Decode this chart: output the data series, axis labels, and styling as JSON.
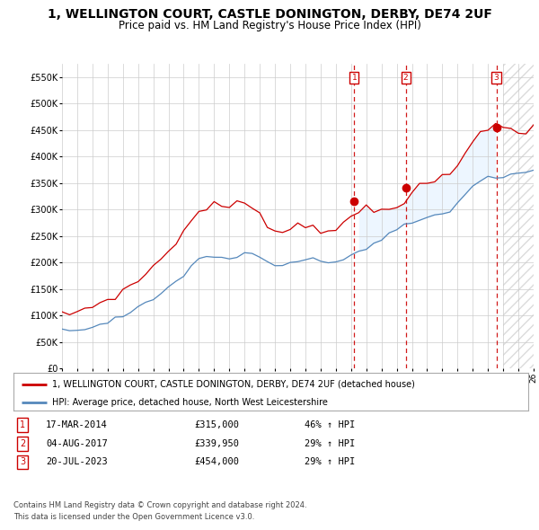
{
  "title": "1, WELLINGTON COURT, CASTLE DONINGTON, DERBY, DE74 2UF",
  "subtitle": "Price paid vs. HM Land Registry's House Price Index (HPI)",
  "title_fontsize": 10,
  "subtitle_fontsize": 8.5,
  "ylim": [
    0,
    575000
  ],
  "yticks": [
    0,
    50000,
    100000,
    150000,
    200000,
    250000,
    300000,
    350000,
    400000,
    450000,
    500000,
    550000
  ],
  "ytick_labels": [
    "£0",
    "£50K",
    "£100K",
    "£150K",
    "£200K",
    "£250K",
    "£300K",
    "£350K",
    "£400K",
    "£450K",
    "£500K",
    "£550K"
  ],
  "x_start_year": 1995,
  "x_end_year": 2026,
  "sale_dates_decimal": [
    2014.21,
    2017.59,
    2023.55
  ],
  "sale_prices": [
    315000,
    339950,
    454000
  ],
  "sale_labels": [
    "1",
    "2",
    "3"
  ],
  "sale_hpi_pct": [
    "46% ↑ HPI",
    "29% ↑ HPI",
    "29% ↑ HPI"
  ],
  "sale_date_labels": [
    "17-MAR-2014",
    "04-AUG-2017",
    "20-JUL-2023"
  ],
  "property_line_color": "#cc0000",
  "hpi_line_color": "#5588bb",
  "hpi_fill_color": "#ddeeff",
  "grid_color": "#cccccc",
  "background_color": "#ffffff",
  "legend_property_label": "1, WELLINGTON COURT, CASTLE DONINGTON, DERBY, DE74 2UF (detached house)",
  "legend_hpi_label": "HPI: Average price, detached house, North West Leicestershire",
  "footer_line1": "Contains HM Land Registry data © Crown copyright and database right 2024.",
  "footer_line2": "This data is licensed under the Open Government Licence v3.0.",
  "hpi_data": {
    "years": [
      1995.0,
      1995.5,
      1996.0,
      1996.5,
      1997.0,
      1997.5,
      1998.0,
      1998.5,
      1999.0,
      1999.5,
      2000.0,
      2000.5,
      2001.0,
      2001.5,
      2002.0,
      2002.5,
      2003.0,
      2003.5,
      2004.0,
      2004.5,
      2005.0,
      2005.5,
      2006.0,
      2006.5,
      2007.0,
      2007.5,
      2008.0,
      2008.5,
      2009.0,
      2009.5,
      2010.0,
      2010.5,
      2011.0,
      2011.5,
      2012.0,
      2012.5,
      2013.0,
      2013.5,
      2014.0,
      2014.5,
      2015.0,
      2015.5,
      2016.0,
      2016.5,
      2017.0,
      2017.5,
      2018.0,
      2018.5,
      2019.0,
      2019.5,
      2020.0,
      2020.5,
      2021.0,
      2021.5,
      2022.0,
      2022.5,
      2023.0,
      2023.5,
      2024.0,
      2024.5,
      2025.0,
      2025.5,
      2026.0
    ],
    "hpi_values": [
      70000,
      72000,
      74000,
      76000,
      80000,
      84000,
      88000,
      93000,
      98000,
      105000,
      113000,
      121000,
      130000,
      140000,
      152000,
      165000,
      178000,
      192000,
      205000,
      210000,
      212000,
      210000,
      208000,
      210000,
      215000,
      213000,
      208000,
      200000,
      192000,
      194000,
      200000,
      203000,
      205000,
      203000,
      200000,
      200000,
      202000,
      207000,
      213000,
      220000,
      228000,
      235000,
      243000,
      252000,
      261000,
      268000,
      275000,
      280000,
      284000,
      287000,
      290000,
      298000,
      312000,
      328000,
      345000,
      355000,
      358000,
      360000,
      362000,
      365000,
      368000,
      370000,
      372000
    ],
    "property_values": [
      100000,
      103000,
      107000,
      112000,
      118000,
      124000,
      130000,
      137000,
      145000,
      155000,
      166000,
      178000,
      192000,
      207000,
      222000,
      240000,
      258000,
      278000,
      295000,
      305000,
      308000,
      305000,
      305000,
      308000,
      312000,
      308000,
      295000,
      275000,
      255000,
      258000,
      265000,
      270000,
      272000,
      268000,
      263000,
      262000,
      265000,
      270000,
      280000,
      295000,
      305000,
      295000,
      298000,
      303000,
      310000,
      318000,
      330000,
      340000,
      348000,
      354000,
      358000,
      365000,
      382000,
      405000,
      428000,
      448000,
      455000,
      460000,
      455000,
      448000,
      445000,
      450000,
      460000
    ]
  }
}
